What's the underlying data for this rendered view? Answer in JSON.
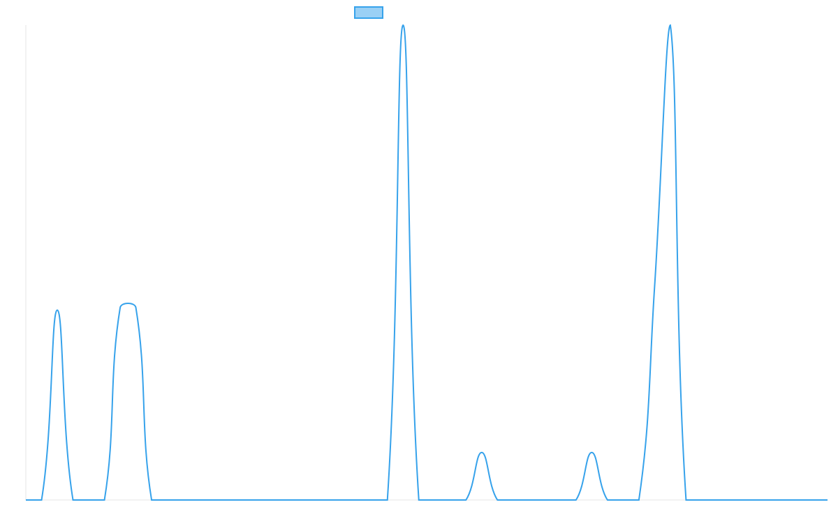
{
  "chart_data": {
    "type": "line",
    "series": [
      {
        "color": "#36a2eb",
        "fill": "#9ad0f5",
        "values": [
          0,
          0,
          40,
          0,
          0,
          0,
          40.5,
          40.5,
          0,
          0,
          0,
          0,
          0,
          0,
          0,
          0,
          0,
          0,
          0,
          0,
          0,
          0,
          0,
          0,
          100,
          0,
          0,
          0,
          0,
          10,
          0,
          0,
          0,
          0,
          0,
          0,
          10,
          0,
          0,
          0,
          45,
          100,
          0,
          0,
          0,
          0,
          0,
          0,
          0,
          0,
          0,
          0
        ]
      }
    ],
    "ylim": [
      0,
      100
    ],
    "tension": 0.4,
    "legend": "top"
  }
}
